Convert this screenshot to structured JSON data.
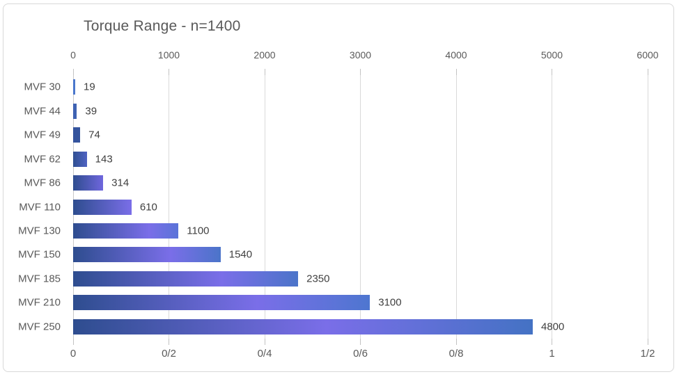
{
  "frame": {
    "background": "#ffffff",
    "border_color": "#d8d8d8"
  },
  "chart_data": {
    "type": "bar",
    "orientation": "horizontal",
    "title": "Torque Range - n=1400",
    "categories": [
      "MVF 30",
      "MVF 44",
      "MVF 49",
      "MVF 62",
      "MVF 86",
      "MVF 110",
      "MVF 130",
      "MVF 150",
      "MVF 185",
      "MVF 210",
      "MVF 250"
    ],
    "values": [
      19,
      39,
      74,
      143,
      314,
      610,
      1100,
      1540,
      2350,
      3100,
      4800
    ],
    "data_labels": [
      "19",
      "39",
      "74",
      "143",
      "314",
      "610",
      "1100",
      "1540",
      "2350",
      "3100",
      "4800"
    ],
    "value_axis_top": {
      "position": "top",
      "ticks": [
        0,
        1000,
        2000,
        3000,
        4000,
        5000,
        6000
      ],
      "labels": [
        "0",
        "1000",
        "2000",
        "3000",
        "4000",
        "5000",
        "6000"
      ],
      "range": [
        0,
        6000
      ]
    },
    "secondary_axis_bottom": {
      "position": "bottom",
      "labels": [
        "0",
        "0/2",
        "0/4",
        "0/6",
        "0/8",
        "1",
        "1/2"
      ]
    },
    "grid": true,
    "legend": "none",
    "colors": {
      "title_text": "#595959",
      "axis_text": "#595959",
      "data_label_text": "#3f3f3f",
      "gridline": "#d9d9d9",
      "tick": "#c2c2c2",
      "bar_navy": "#2e4d8f",
      "bar_purple": "#7a6ee8",
      "bar_blue": "#4472c4"
    },
    "bar_fills": [
      "#4b77cc",
      "#3e62b2",
      "#34539d",
      "linear-gradient(90deg, #2f4f92 0%, #4f63c2 100%)",
      "linear-gradient(90deg, #2e4d8f 0%, #6f66dd 100%)",
      "linear-gradient(90deg, #2e4d8f 0%, #7a6ee8 100%)",
      "linear-gradient(90deg, #2e4d8f 0%, #7a6ee8 72%, #5a73d8 100%)",
      "linear-gradient(90deg, #2e4d8f 0%, #7a6ee8 66%, #4b74c9 100%)",
      "linear-gradient(90deg, #2e4d8f 0%, #7a6ee8 66%, #4b74c9 100%)",
      "linear-gradient(90deg, #2e4d8f 0%, #7a6ee8 62%, #4e76d0 100%)",
      "linear-gradient(90deg, #2e4d8f 0%, #7a6ee8 55%, #4472c4 100%)"
    ]
  }
}
